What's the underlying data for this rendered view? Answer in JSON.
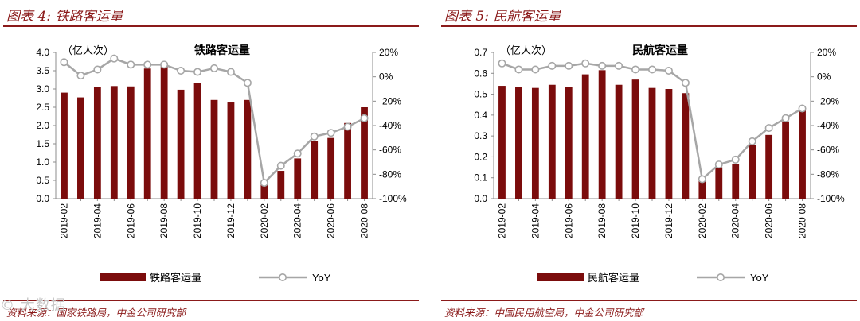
{
  "colors": {
    "accent": "#8b1a1a",
    "bar": "#7b0c0c",
    "line": "#a6a6a6",
    "axis": "#8c8c8c"
  },
  "watermark": "© 大数据",
  "chart_data": [
    {
      "figure_title": "图表 4:  铁路客运量",
      "type": "bar",
      "title": "铁路客运量",
      "ylabel": "（亿人次）",
      "ylim": [
        0,
        4.0
      ],
      "yticks": [
        "0.0",
        "0.5",
        "1.0",
        "1.5",
        "2.0",
        "2.5",
        "3.0",
        "3.5",
        "4.0"
      ],
      "y2lim": [
        -100,
        20
      ],
      "y2ticks": [
        "20%",
        "0%",
        "-20%",
        "-40%",
        "-60%",
        "-80%",
        "-100%"
      ],
      "categories": [
        "2019-02",
        "2019-03",
        "2019-04",
        "2019-05",
        "2019-06",
        "2019-07",
        "2019-08",
        "2019-09",
        "2019-10",
        "2019-11",
        "2019-12",
        "2020-01",
        "2020-02",
        "2020-03",
        "2020-04",
        "2020-05",
        "2020-06",
        "2020-07",
        "2020-08"
      ],
      "xtick_labels": [
        "2019-02",
        "2019-04",
        "2019-06",
        "2019-08",
        "2019-10",
        "2019-12",
        "2020-02",
        "2020-04",
        "2020-06",
        "2020-08"
      ],
      "series": [
        {
          "name": "铁路客运量",
          "type": "bar",
          "axis": "left",
          "values": [
            2.9,
            2.77,
            3.05,
            3.08,
            3.07,
            3.56,
            3.72,
            2.98,
            3.17,
            2.7,
            2.63,
            2.7,
            0.4,
            0.76,
            1.1,
            1.57,
            1.66,
            2.07,
            2.5
          ]
        },
        {
          "name": "YoY",
          "type": "line",
          "axis": "right",
          "values": [
            12,
            1,
            6,
            15,
            10,
            10,
            10,
            5,
            4,
            7,
            4,
            -5,
            -87,
            -73,
            -63,
            -49,
            -46,
            -41,
            -34
          ]
        }
      ],
      "legend": [
        "铁路客运量",
        "YoY"
      ],
      "source": "资料来源：国家铁路局，中金公司研究部"
    },
    {
      "figure_title": "图表 5:  民航客运量",
      "type": "bar",
      "title": "民航客运量",
      "ylabel": "（亿人次）",
      "ylim": [
        0,
        0.7
      ],
      "yticks": [
        "0.0",
        "0.1",
        "0.2",
        "0.3",
        "0.4",
        "0.5",
        "0.6",
        "0.7"
      ],
      "y2lim": [
        -100,
        20
      ],
      "y2ticks": [
        "20%",
        "0%",
        "-20%",
        "-40%",
        "-60%",
        "-80%",
        "-100%"
      ],
      "categories": [
        "2019-02",
        "2019-03",
        "2019-04",
        "2019-05",
        "2019-06",
        "2019-07",
        "2019-08",
        "2019-09",
        "2019-10",
        "2019-11",
        "2019-12",
        "2020-01",
        "2020-02",
        "2020-03",
        "2020-04",
        "2020-05",
        "2020-06",
        "2020-07",
        "2020-08"
      ],
      "xtick_labels": [
        "2019-02",
        "2019-04",
        "2019-06",
        "2019-08",
        "2019-10",
        "2019-12",
        "2020-02",
        "2020-04",
        "2020-06",
        "2020-08"
      ],
      "series": [
        {
          "name": "民航客运量",
          "type": "bar",
          "axis": "left",
          "values": [
            0.54,
            0.535,
            0.53,
            0.545,
            0.535,
            0.595,
            0.615,
            0.545,
            0.57,
            0.53,
            0.525,
            0.505,
            0.085,
            0.15,
            0.165,
            0.255,
            0.305,
            0.37,
            0.44
          ]
        },
        {
          "name": "YoY",
          "type": "line",
          "axis": "right",
          "values": [
            11,
            6,
            6,
            9,
            9,
            11,
            9,
            9,
            6,
            6,
            5,
            -5,
            -84,
            -72,
            -68,
            -53,
            -42,
            -34,
            -26
          ]
        }
      ],
      "legend": [
        "民航客运量",
        "YoY"
      ],
      "source": "资料来源：中国民用航空局，中金公司研究部"
    }
  ]
}
